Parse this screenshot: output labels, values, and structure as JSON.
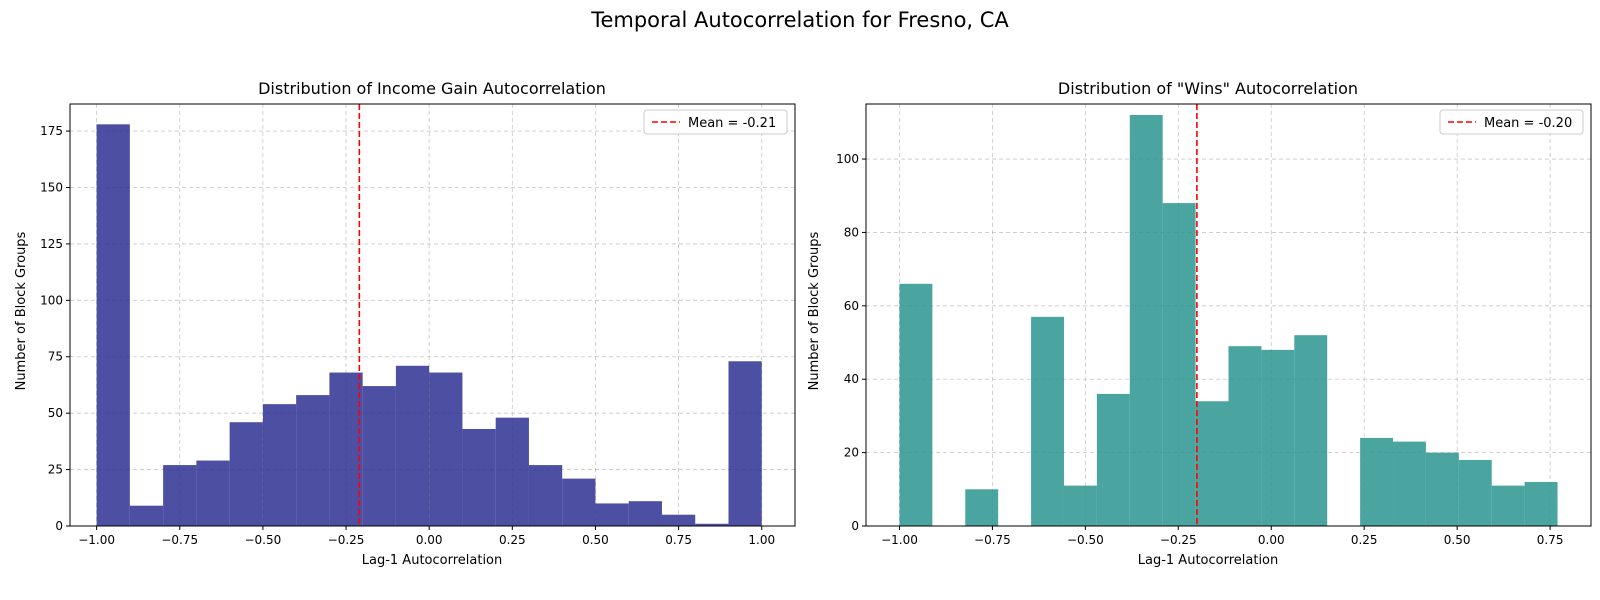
{
  "figure": {
    "title": "Temporal Autocorrelation for Fresno, CA"
  },
  "chart_data": [
    {
      "type": "histogram",
      "title": "Distribution of Income Gain Autocorrelation",
      "xlabel": "Lag-1 Autocorrelation",
      "ylabel": "Number of Block Groups",
      "color": "#2e3192",
      "xlim": [
        -1.08,
        1.1
      ],
      "ylim": [
        0,
        187
      ],
      "xticks": [
        -1.0,
        -0.75,
        -0.5,
        -0.25,
        0.0,
        0.25,
        0.5,
        0.75,
        1.0
      ],
      "xtick_labels": [
        "−1.00",
        "−0.75",
        "−0.50",
        "−0.25",
        "0.00",
        "0.25",
        "0.50",
        "0.75",
        "1.00"
      ],
      "yticks": [
        0,
        25,
        50,
        75,
        100,
        125,
        150,
        175
      ],
      "ytick_labels": [
        "0",
        "25",
        "50",
        "75",
        "100",
        "125",
        "150",
        "175"
      ],
      "bin_start": -1.0,
      "bin_width": 0.1,
      "counts": [
        178,
        9,
        27,
        29,
        46,
        54,
        58,
        68,
        62,
        71,
        68,
        43,
        48,
        27,
        21,
        10,
        11,
        5,
        1,
        73
      ],
      "mean": -0.21,
      "legend_label": "Mean = -0.21",
      "legend_position": "upper right",
      "grid": true
    },
    {
      "type": "histogram",
      "title": "Distribution of \"Wins\" Autocorrelation",
      "xlabel": "Lag-1 Autocorrelation",
      "ylabel": "Number of Block Groups",
      "color": "#2a9590",
      "xlim": [
        -1.09,
        0.86
      ],
      "ylim": [
        0,
        115
      ],
      "xticks": [
        -1.0,
        -0.75,
        -0.5,
        -0.25,
        0.0,
        0.25,
        0.5,
        0.75
      ],
      "xtick_labels": [
        "−1.00",
        "−0.75",
        "−0.50",
        "−0.25",
        "0.00",
        "0.25",
        "0.50",
        "0.75"
      ],
      "yticks": [
        0,
        20,
        40,
        60,
        80,
        100
      ],
      "ytick_labels": [
        "0",
        "20",
        "40",
        "60",
        "80",
        "100"
      ],
      "bin_start": -1.0,
      "bin_width": 0.0885,
      "counts": [
        66,
        0,
        10,
        0,
        57,
        11,
        36,
        112,
        88,
        34,
        49,
        48,
        52,
        0,
        24,
        23,
        20,
        18,
        11,
        12
      ],
      "mean": -0.2,
      "legend_label": "Mean = -0.20",
      "legend_position": "upper right",
      "grid": true
    }
  ]
}
